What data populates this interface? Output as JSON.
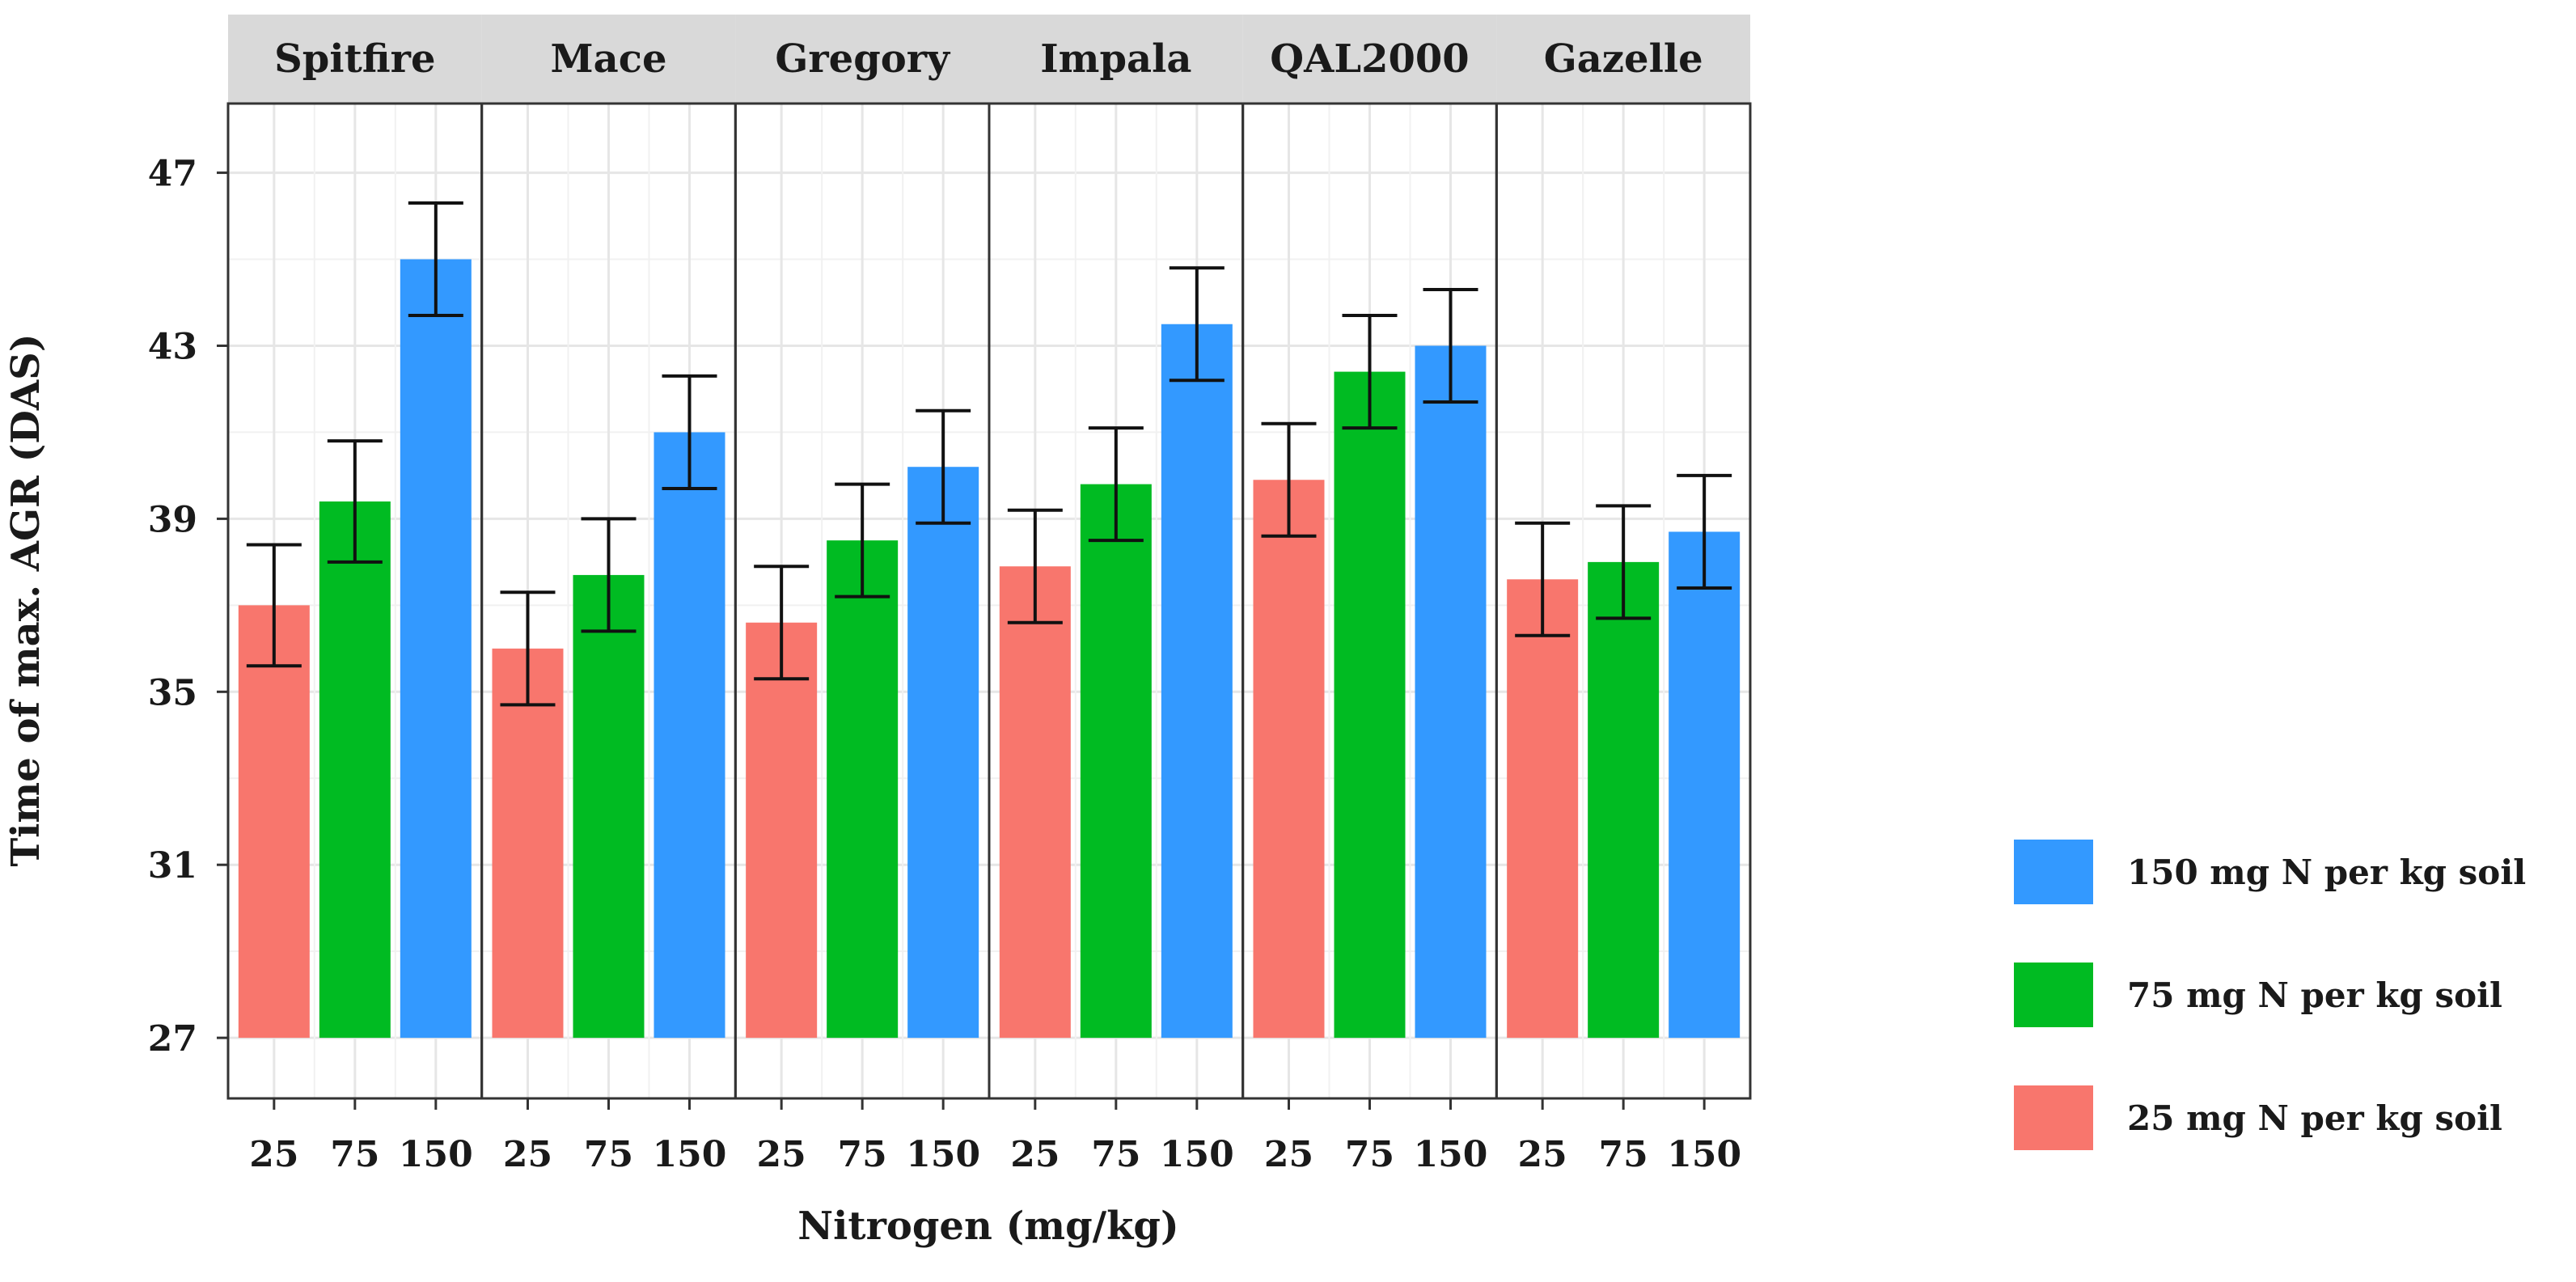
{
  "chart_data": {
    "type": "bar",
    "xlabel": "Nitrogen (mg/kg)",
    "ylabel": "Time of max. AGR (DAS)",
    "ylim": [
      25.6,
      48.6
    ],
    "yticks": [
      27,
      31,
      35,
      39,
      43,
      47
    ],
    "categories": [
      "25",
      "75",
      "150"
    ],
    "grid": true,
    "legend_position": "right",
    "legend": [
      {
        "label": "150 mg N per kg soil",
        "color": "#3399ff"
      },
      {
        "label": "75 mg N per kg soil",
        "color": "#00bb22"
      },
      {
        "label": "25 mg N per kg soil",
        "color": "#f8766d"
      }
    ],
    "series_colors": {
      "25": "#f8766d",
      "75": "#00bb22",
      "150": "#3399ff"
    },
    "panels": [
      {
        "name": "Spitfire",
        "values": [
          37.0,
          39.4,
          45.0
        ],
        "errors": [
          1.4,
          1.4,
          1.3
        ]
      },
      {
        "name": "Mace",
        "values": [
          36.0,
          37.7,
          41.0
        ],
        "errors": [
          1.3,
          1.3,
          1.3
        ]
      },
      {
        "name": "Gregory",
        "values": [
          36.6,
          38.5,
          40.2
        ],
        "errors": [
          1.3,
          1.3,
          1.3
        ]
      },
      {
        "name": "Impala",
        "values": [
          37.9,
          39.8,
          43.5
        ],
        "errors": [
          1.3,
          1.3,
          1.3
        ]
      },
      {
        "name": "QAL2000",
        "values": [
          39.9,
          42.4,
          43.0
        ],
        "errors": [
          1.3,
          1.3,
          1.3
        ]
      },
      {
        "name": "Gazelle",
        "values": [
          37.6,
          38.0,
          38.7
        ],
        "errors": [
          1.3,
          1.3,
          1.3
        ]
      }
    ]
  }
}
